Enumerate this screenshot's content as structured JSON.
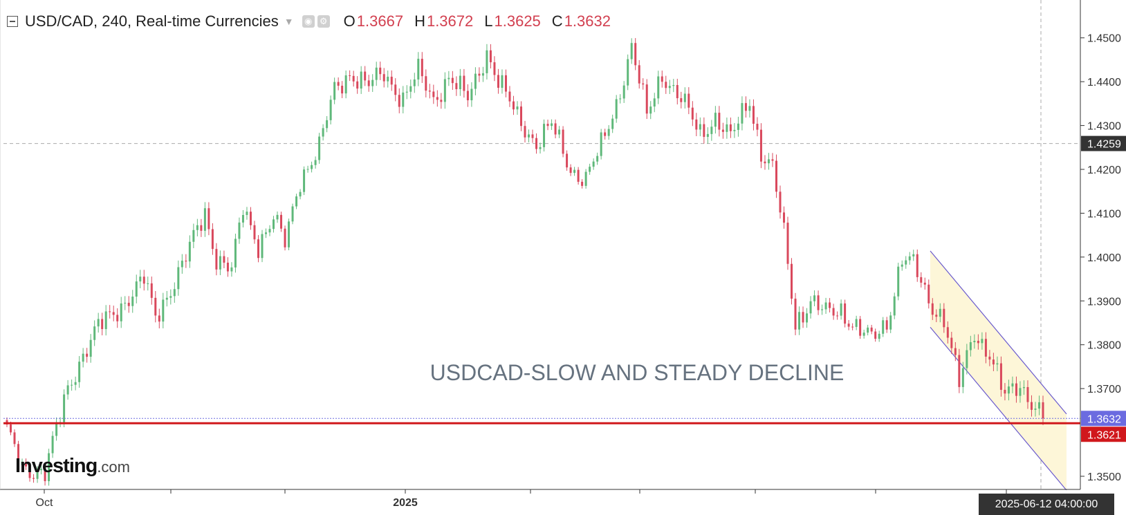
{
  "header": {
    "symbol_label": "USD/CAD, 240, Real-time Currencies",
    "open_key": "O",
    "open_value": "1.3667",
    "high_key": "H",
    "high_value": "1.3672",
    "low_key": "L",
    "low_value": "1.3625",
    "close_key": "C",
    "close_value": "1.3632",
    "icons": [
      "collapse-icon",
      "dropdown-caret-icon",
      "eye-icon",
      "gear-icon"
    ]
  },
  "watermark": {
    "brand": "Investing",
    "domain": ".com"
  },
  "chart_data": {
    "type": "candlestick",
    "annotation": "USDCAD-SLOW AND STEADY DECLINE",
    "y_ticks": [
      "1.4500",
      "1.4400",
      "1.4300",
      "1.4200",
      "1.4100",
      "1.4000",
      "1.3900",
      "1.3800",
      "1.3700",
      "1.3500"
    ],
    "ylim": [
      1.347,
      1.458
    ],
    "x_ticks": [
      {
        "label": "Oct",
        "bold": false
      },
      {
        "label": "2025",
        "bold": true
      }
    ],
    "price_labels": [
      {
        "value": "1.4259",
        "role": "crosshair",
        "color": "#333333"
      },
      {
        "value": "1.3632",
        "role": "last-price",
        "color": "#6b6be0"
      },
      {
        "value": "1.3621",
        "role": "support-line",
        "color": "#d0181c"
      }
    ],
    "crosshair_time": "2025-06-12 04:00:00",
    "support_level": 1.3621,
    "colors": {
      "up": "#5fb87a",
      "down": "#d9485c",
      "support": "#d0181c",
      "channel": "#6a5acd",
      "channel_fill": "#fdf6d8"
    },
    "series_anchors": [
      [
        0,
        1.36
      ],
      [
        4,
        1.352
      ],
      [
        10,
        1.351
      ],
      [
        16,
        1.37
      ],
      [
        20,
        1.378
      ],
      [
        24,
        1.384
      ],
      [
        28,
        1.387
      ],
      [
        32,
        1.391
      ],
      [
        36,
        1.395
      ],
      [
        39,
        1.386
      ],
      [
        43,
        1.393
      ],
      [
        47,
        1.4
      ],
      [
        52,
        1.41
      ],
      [
        55,
        1.4
      ],
      [
        59,
        1.397
      ],
      [
        62,
        1.411
      ],
      [
        66,
        1.403
      ],
      [
        70,
        1.409
      ],
      [
        73,
        1.403
      ],
      [
        77,
        1.418
      ],
      [
        82,
        1.425
      ],
      [
        86,
        1.438
      ],
      [
        90,
        1.442
      ],
      [
        95,
        1.439
      ],
      [
        99,
        1.442
      ],
      [
        104,
        1.436
      ],
      [
        108,
        1.442
      ],
      [
        112,
        1.436
      ],
      [
        116,
        1.441
      ],
      [
        121,
        1.436
      ],
      [
        126,
        1.447
      ],
      [
        129,
        1.44
      ],
      [
        134,
        1.432
      ],
      [
        139,
        1.426
      ],
      [
        143,
        1.43
      ],
      [
        148,
        1.42
      ],
      [
        152,
        1.418
      ],
      [
        156,
        1.425
      ],
      [
        160,
        1.435
      ],
      [
        164,
        1.448
      ],
      [
        168,
        1.432
      ],
      [
        172,
        1.442
      ],
      [
        177,
        1.436
      ],
      [
        182,
        1.428
      ],
      [
        186,
        1.432
      ],
      [
        190,
        1.427
      ],
      [
        195,
        1.436
      ],
      [
        198,
        1.424
      ],
      [
        201,
        1.42
      ],
      [
        204,
        1.405
      ],
      [
        207,
        1.385
      ],
      [
        211,
        1.39
      ],
      [
        215,
        1.387
      ],
      [
        219,
        1.388
      ],
      [
        223,
        1.384
      ],
      [
        227,
        1.381
      ],
      [
        231,
        1.385
      ],
      [
        235,
        1.4
      ],
      [
        238,
        1.398
      ],
      [
        242,
        1.39
      ],
      [
        246,
        1.386
      ],
      [
        250,
        1.371
      ],
      [
        254,
        1.383
      ],
      [
        258,
        1.378
      ],
      [
        262,
        1.368
      ],
      [
        266,
        1.371
      ],
      [
        270,
        1.366
      ],
      [
        272,
        1.3632
      ]
    ],
    "candle_count": 273
  }
}
